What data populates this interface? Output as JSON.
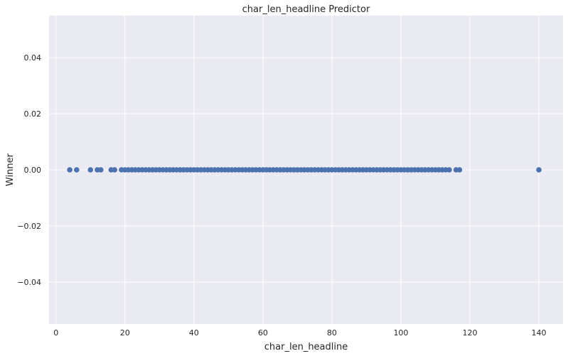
{
  "chart_data": {
    "type": "scatter",
    "title": "char_len_headline Predictor",
    "xlabel": "char_len_headline",
    "ylabel": "Winner",
    "xlim": [
      -2,
      147
    ],
    "ylim": [
      -0.055,
      0.055
    ],
    "xticks": [
      0,
      20,
      40,
      60,
      80,
      100,
      120,
      140
    ],
    "yticks": [
      -0.04,
      -0.02,
      0.0,
      0.02,
      0.04
    ],
    "ytick_labels": [
      "−0.04",
      "−0.02",
      "0.00",
      "0.02",
      "0.04"
    ],
    "grid": true,
    "background": "#eaeaf2",
    "grid_color": "#ffffff",
    "marker_color": "#4c72b0",
    "series": [
      {
        "x": [
          4,
          6,
          10,
          12,
          13,
          16,
          17,
          19,
          20,
          21,
          22,
          23,
          24,
          25,
          26,
          27,
          28,
          29,
          30,
          31,
          32,
          33,
          34,
          35,
          36,
          37,
          38,
          39,
          40,
          41,
          42,
          43,
          44,
          45,
          46,
          47,
          48,
          49,
          50,
          51,
          52,
          53,
          54,
          55,
          56,
          57,
          58,
          59,
          60,
          61,
          62,
          63,
          64,
          65,
          66,
          67,
          68,
          69,
          70,
          71,
          72,
          73,
          74,
          75,
          76,
          77,
          78,
          79,
          80,
          81,
          82,
          83,
          84,
          85,
          86,
          87,
          88,
          89,
          90,
          91,
          92,
          93,
          94,
          95,
          96,
          97,
          98,
          99,
          100,
          101,
          102,
          103,
          104,
          105,
          106,
          107,
          108,
          109,
          110,
          111,
          112,
          113,
          114,
          116,
          117,
          140
        ],
        "y": [
          0,
          0,
          0,
          0,
          0,
          0,
          0,
          0,
          0,
          0,
          0,
          0,
          0,
          0,
          0,
          0,
          0,
          0,
          0,
          0,
          0,
          0,
          0,
          0,
          0,
          0,
          0,
          0,
          0,
          0,
          0,
          0,
          0,
          0,
          0,
          0,
          0,
          0,
          0,
          0,
          0,
          0,
          0,
          0,
          0,
          0,
          0,
          0,
          0,
          0,
          0,
          0,
          0,
          0,
          0,
          0,
          0,
          0,
          0,
          0,
          0,
          0,
          0,
          0,
          0,
          0,
          0,
          0,
          0,
          0,
          0,
          0,
          0,
          0,
          0,
          0,
          0,
          0,
          0,
          0,
          0,
          0,
          0,
          0,
          0,
          0,
          0,
          0,
          0,
          0,
          0,
          0,
          0,
          0,
          0,
          0,
          0,
          0,
          0,
          0,
          0,
          0,
          0,
          0,
          0,
          0
        ]
      }
    ]
  }
}
